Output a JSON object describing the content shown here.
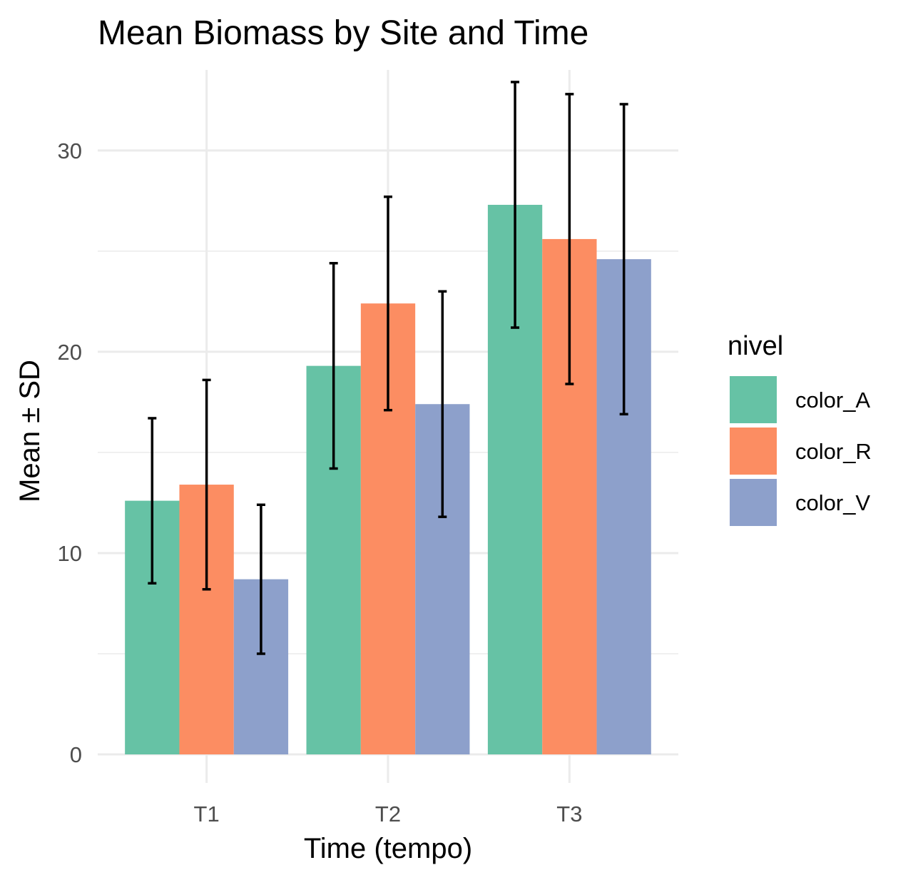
{
  "chart_data": {
    "type": "bar",
    "title": "Mean Biomass by Site and Time",
    "xlabel": "Time (tempo)",
    "ylabel": "Mean ± SD",
    "categories": [
      "T1",
      "T2",
      "T3"
    ],
    "ylim": [
      0,
      34
    ],
    "yticks": [
      0,
      10,
      20,
      30
    ],
    "grid": true,
    "legend": {
      "title": "nivel",
      "position": "right"
    },
    "series": [
      {
        "name": "color_A",
        "color": "#66c2a5",
        "values": [
          12.6,
          19.3,
          27.3
        ],
        "sd": [
          4.1,
          5.1,
          6.1
        ]
      },
      {
        "name": "color_R",
        "color": "#fc8d62",
        "values": [
          13.4,
          22.4,
          25.6
        ],
        "sd": [
          5.2,
          5.3,
          7.2
        ]
      },
      {
        "name": "color_V",
        "color": "#8da0cb",
        "values": [
          8.7,
          17.4,
          24.6
        ],
        "sd": [
          3.7,
          5.6,
          7.7
        ]
      }
    ]
  }
}
